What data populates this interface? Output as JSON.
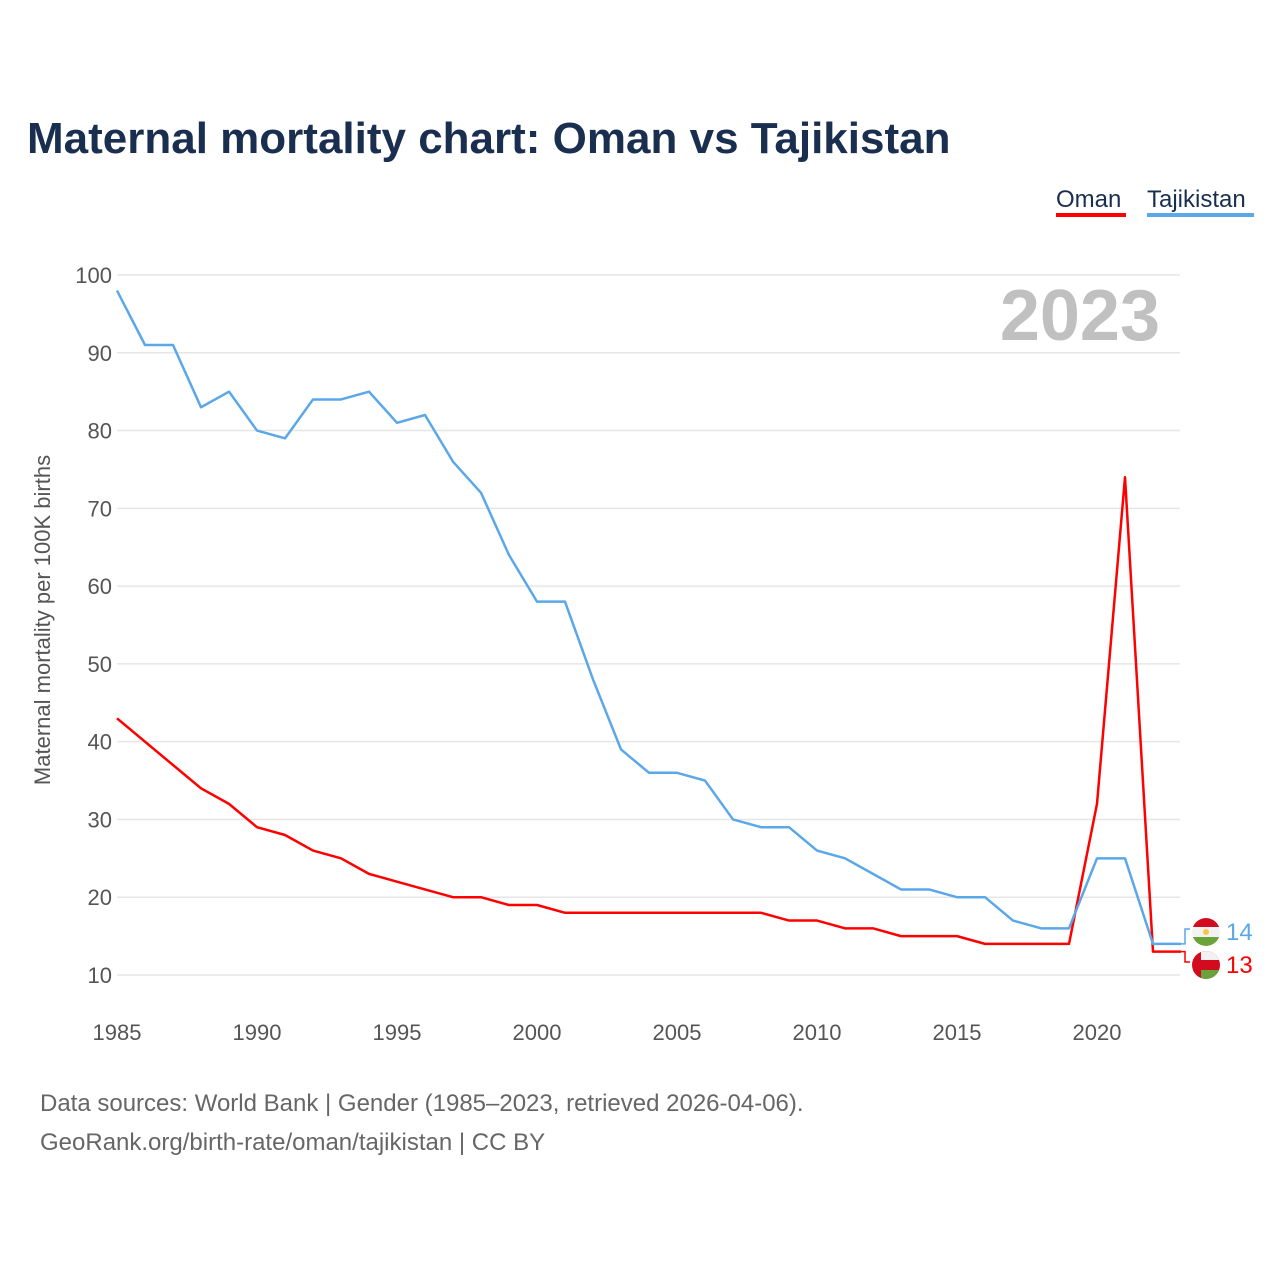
{
  "chart_data": {
    "type": "line",
    "title": "Maternal mortality chart: Oman vs Tajikistan",
    "ylabel": "Maternal mortality per 100K births",
    "xlabel": "",
    "ylim": [
      10,
      100
    ],
    "xlim": [
      1985,
      2023
    ],
    "yticks": [
      10,
      20,
      30,
      40,
      50,
      60,
      70,
      80,
      90,
      100
    ],
    "xticks": [
      1985,
      1990,
      1995,
      2000,
      2005,
      2010,
      2015,
      2020
    ],
    "grid": true,
    "legend_placement": "top-right",
    "year_label": "2023",
    "x": [
      1985,
      1986,
      1987,
      1988,
      1989,
      1990,
      1991,
      1992,
      1993,
      1994,
      1995,
      1996,
      1997,
      1998,
      1999,
      2000,
      2001,
      2002,
      2003,
      2004,
      2005,
      2006,
      2007,
      2008,
      2009,
      2010,
      2011,
      2012,
      2013,
      2014,
      2015,
      2016,
      2017,
      2018,
      2019,
      2020,
      2021,
      2022,
      2023
    ],
    "series": [
      {
        "name": "Oman",
        "color": "#ff0000",
        "end_label": "13",
        "values": [
          43,
          40,
          37,
          34,
          32,
          29,
          28,
          26,
          25,
          23,
          22,
          21,
          20,
          20,
          19,
          19,
          18,
          18,
          18,
          18,
          18,
          18,
          18,
          18,
          17,
          17,
          16,
          16,
          15,
          15,
          15,
          14,
          14,
          14,
          14,
          32,
          74,
          13,
          13
        ]
      },
      {
        "name": "Tajikistan",
        "color": "#5aa7ea",
        "end_label": "14",
        "values": [
          98,
          91,
          91,
          83,
          85,
          80,
          79,
          84,
          84,
          85,
          81,
          82,
          76,
          72,
          64,
          58,
          58,
          48,
          39,
          36,
          36,
          35,
          30,
          29,
          29,
          26,
          25,
          23,
          21,
          21,
          20,
          20,
          17,
          16,
          16,
          25,
          25,
          14,
          14
        ]
      }
    ]
  },
  "footer": {
    "line1": "Data sources: World Bank | Gender (1985–2023, retrieved 2026-04-06).",
    "line2": "GeoRank.org/birth-rate/oman/tajikistan | CC BY"
  }
}
